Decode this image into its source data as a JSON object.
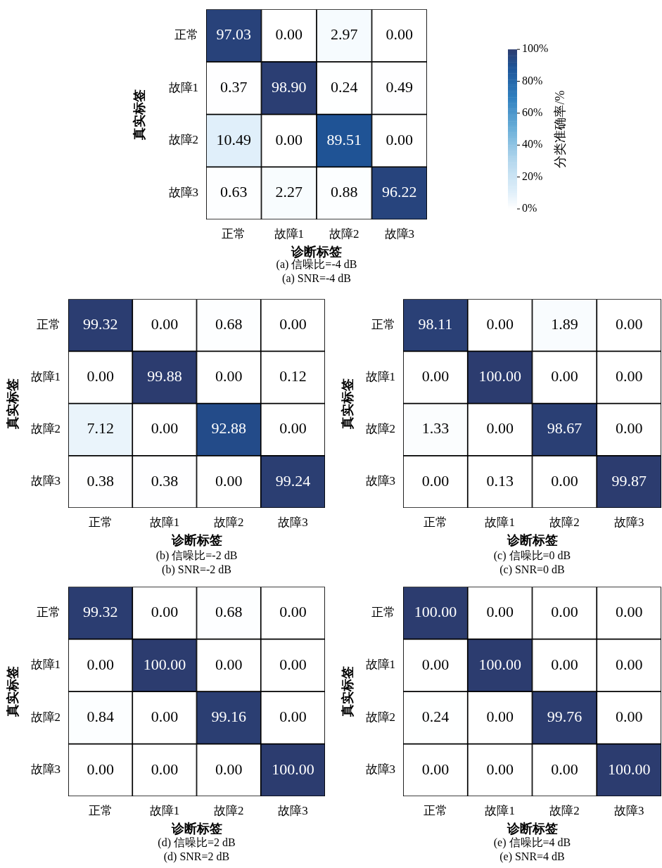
{
  "chart_data": [
    {
      "type": "heatmap",
      "categories": [
        "正常",
        "故障1",
        "故障2",
        "故障3"
      ],
      "y_categories": [
        "正常",
        "故障1",
        "故障2",
        "故障3"
      ],
      "xlabel": "诊断标签",
      "ylabel": "真实标签",
      "clabel": "分类准确率/%",
      "clim": [
        0,
        100
      ],
      "cticks": [
        {
          "value": 0,
          "label": "0%"
        },
        {
          "value": 20,
          "label": "20%"
        },
        {
          "value": 40,
          "label": "40%"
        },
        {
          "value": 60,
          "label": "60%"
        },
        {
          "value": 80,
          "label": "80%"
        },
        {
          "value": 100,
          "label": "100%"
        }
      ],
      "cells": [
        [
          97.03,
          0,
          2.97,
          0
        ],
        [
          0.37,
          98.9,
          0.24,
          0.49
        ],
        [
          10.49,
          0,
          89.51,
          0
        ],
        [
          0.63,
          2.27,
          0.88,
          96.22
        ]
      ],
      "cell_labels": [
        [
          "97.03",
          "0.00",
          "2.97",
          "0.00"
        ],
        [
          "0.37",
          "98.90",
          "0.24",
          "0.49"
        ],
        [
          "10.49",
          "0.00",
          "89.51",
          "0.00"
        ],
        [
          "0.63",
          "2.27",
          "0.88",
          "96.22"
        ]
      ],
      "annotations": [
        "(a) 信噪比=-4 dB",
        "(a) SNR=-4 dB"
      ]
    },
    {
      "type": "heatmap",
      "categories": [
        "正常",
        "故障1",
        "故障2",
        "故障3"
      ],
      "y_categories": [
        "正常",
        "故障1",
        "故障2",
        "故障3"
      ],
      "xlabel": "诊断标签",
      "ylabel": "真实标签",
      "cells": [
        [
          99.32,
          0,
          0.68,
          0
        ],
        [
          0,
          99.88,
          0,
          0.12
        ],
        [
          7.12,
          0,
          92.88,
          0
        ],
        [
          0.38,
          0.38,
          0,
          99.24
        ]
      ],
      "cell_labels": [
        [
          "99.32",
          "0.00",
          "0.68",
          "0.00"
        ],
        [
          "0.00",
          "99.88",
          "0.00",
          "0.12"
        ],
        [
          "7.12",
          "0.00",
          "92.88",
          "0.00"
        ],
        [
          "0.38",
          "0.38",
          "0.00",
          "99.24"
        ]
      ],
      "annotations": [
        "(b) 信噪比=-2 dB",
        "(b) SNR=-2 dB"
      ]
    },
    {
      "type": "heatmap",
      "categories": [
        "正常",
        "故障1",
        "故障2",
        "故障3"
      ],
      "y_categories": [
        "正常",
        "故障1",
        "故障2",
        "故障3"
      ],
      "xlabel": "诊断标签",
      "ylabel": "真实标签",
      "cells": [
        [
          98.11,
          0,
          1.89,
          0
        ],
        [
          0,
          100,
          0,
          0
        ],
        [
          1.33,
          0,
          98.67,
          0
        ],
        [
          0,
          0.13,
          0,
          99.87
        ]
      ],
      "cell_labels": [
        [
          "98.11",
          "0.00",
          "1.89",
          "0.00"
        ],
        [
          "0.00",
          "100.00",
          "0.00",
          "0.00"
        ],
        [
          "1.33",
          "0.00",
          "98.67",
          "0.00"
        ],
        [
          "0.00",
          "0.13",
          "0.00",
          "99.87"
        ]
      ],
      "annotations": [
        "(c) 信噪比=0 dB",
        "(c) SNR=0 dB"
      ]
    },
    {
      "type": "heatmap",
      "categories": [
        "正常",
        "故障1",
        "故障2",
        "故障3"
      ],
      "y_categories": [
        "正常",
        "故障1",
        "故障2",
        "故障3"
      ],
      "xlabel": "诊断标签",
      "ylabel": "真实标签",
      "cells": [
        [
          99.32,
          0,
          0.68,
          0
        ],
        [
          0,
          100,
          0,
          0
        ],
        [
          0.84,
          0,
          99.16,
          0
        ],
        [
          0,
          0,
          0,
          100
        ]
      ],
      "cell_labels": [
        [
          "99.32",
          "0.00",
          "0.68",
          "0.00"
        ],
        [
          "0.00",
          "100.00",
          "0.00",
          "0.00"
        ],
        [
          "0.84",
          "0.00",
          "99.16",
          "0.00"
        ],
        [
          "0.00",
          "0.00",
          "0.00",
          "100.00"
        ]
      ],
      "annotations": [
        "(d) 信噪比=2 dB",
        "(d) SNR=2 dB"
      ]
    },
    {
      "type": "heatmap",
      "categories": [
        "正常",
        "故障1",
        "故障2",
        "故障3"
      ],
      "y_categories": [
        "正常",
        "故障1",
        "故障2",
        "故障3"
      ],
      "xlabel": "诊断标签",
      "ylabel": "真实标签",
      "cells": [
        [
          100,
          0,
          0,
          0
        ],
        [
          0,
          100,
          0,
          0
        ],
        [
          0.24,
          0,
          99.76,
          0
        ],
        [
          0,
          0,
          0,
          100
        ]
      ],
      "cell_labels": [
        [
          "100.00",
          "0.00",
          "0.00",
          "0.00"
        ],
        [
          "0.00",
          "100.00",
          "0.00",
          "0.00"
        ],
        [
          "0.24",
          "0.00",
          "99.76",
          "0.00"
        ],
        [
          "0.00",
          "0.00",
          "0.00",
          "100.00"
        ]
      ],
      "annotations": [
        "(e) 信噪比=4 dB",
        "(e) SNR=4 dB"
      ]
    }
  ]
}
